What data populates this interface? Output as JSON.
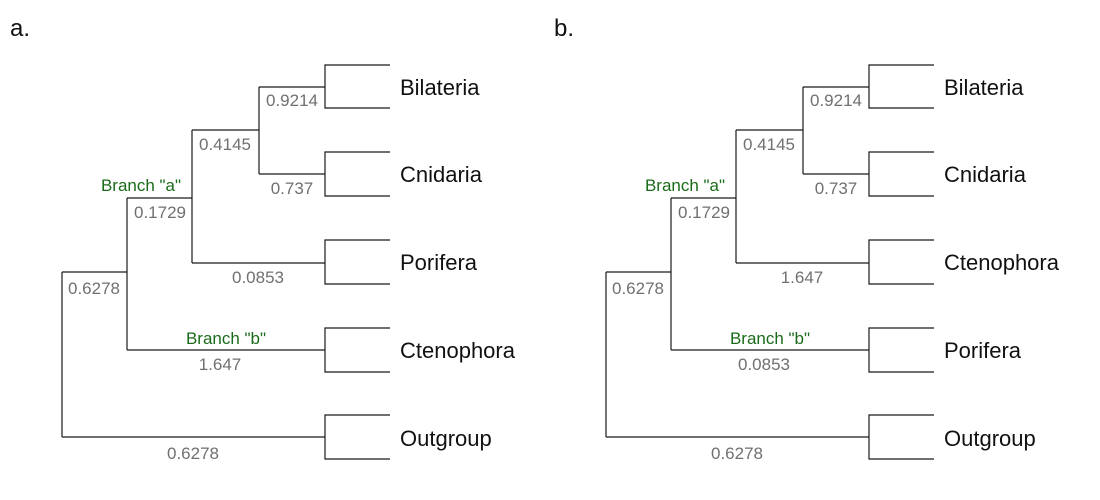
{
  "colors": {
    "line": "#1a1a1a",
    "branch_length": "#707070",
    "branch_name": "#1a6b1a"
  },
  "panels": [
    {
      "label": "a.",
      "taxa": [
        "Bilateria",
        "Cnidaria",
        "Porifera",
        "Ctenophora",
        "Outgroup"
      ],
      "branch_lengths": {
        "bilateria_cnidaria": "0.9214",
        "cnidaria": "0.737",
        "bc_clade": "0.4145",
        "third_taxon": "0.0853",
        "branch_a": "0.1729",
        "branch_b": "1.647",
        "root_upper": "0.6278",
        "outgroup": "0.6278"
      },
      "branch_names": {
        "a": "Branch \"a\"",
        "b": "Branch \"b\""
      }
    },
    {
      "label": "b.",
      "taxa": [
        "Bilateria",
        "Cnidaria",
        "Ctenophora",
        "Porifera",
        "Outgroup"
      ],
      "branch_lengths": {
        "bilateria_cnidaria": "0.9214",
        "cnidaria": "0.737",
        "bc_clade": "0.4145",
        "third_taxon": "1.647",
        "branch_a": "0.1729",
        "branch_b": "0.0853",
        "root_upper": "0.6278",
        "outgroup": "0.6278"
      },
      "branch_names": {
        "a": "Branch \"a\"",
        "b": "Branch \"b\""
      }
    }
  ]
}
